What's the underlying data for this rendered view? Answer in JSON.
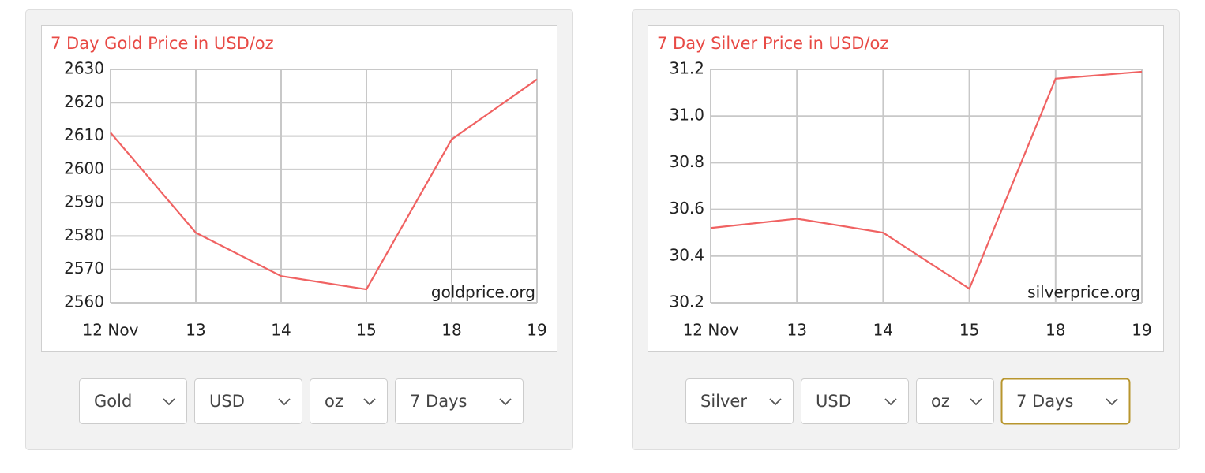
{
  "chart_data": [
    {
      "type": "line",
      "title": "7 Day Gold Price in USD/oz",
      "watermark": "goldprice.org",
      "categories": [
        "12 Nov",
        "13",
        "14",
        "15",
        "18",
        "19"
      ],
      "series": [
        {
          "name": "Gold",
          "color": "#f06262",
          "values": [
            2611,
            2581,
            2568,
            2564,
            2609,
            2627
          ]
        }
      ],
      "ylim": [
        2560,
        2630
      ],
      "yticks": [
        2560,
        2570,
        2580,
        2590,
        2600,
        2610,
        2620,
        2630
      ],
      "grid": true
    },
    {
      "type": "line",
      "title": "7 Day Silver Price in USD/oz",
      "watermark": "silverprice.org",
      "categories": [
        "12 Nov",
        "13",
        "14",
        "15",
        "18",
        "19"
      ],
      "series": [
        {
          "name": "Silver",
          "color": "#f06262",
          "values": [
            30.52,
            30.56,
            30.5,
            30.26,
            31.16,
            31.19
          ]
        }
      ],
      "ylim": [
        30.2,
        31.2
      ],
      "yticks": [
        30.2,
        30.4,
        30.6,
        30.8,
        {
          "value": 31,
          "label": "31.0"
        },
        31.2
      ],
      "grid": true
    }
  ],
  "controls": [
    [
      "Gold",
      "USD",
      "oz",
      "7 Days"
    ],
    [
      "Silver",
      "USD",
      "oz",
      "7 Days"
    ]
  ]
}
